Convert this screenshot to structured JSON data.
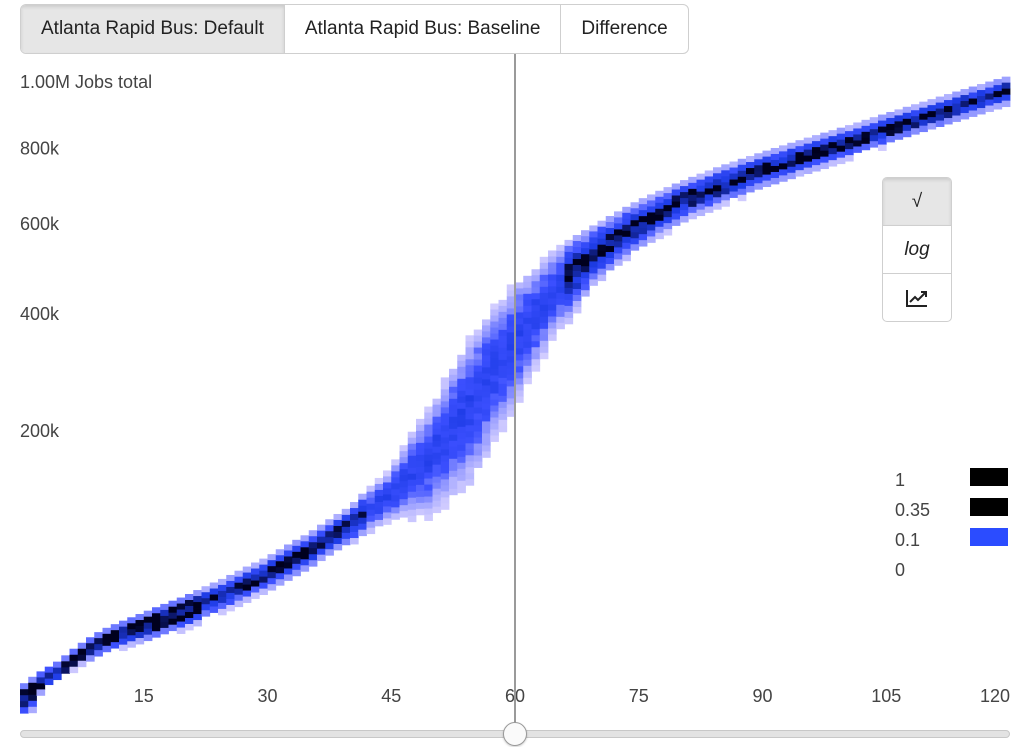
{
  "tabs": [
    {
      "label": "Atlanta Rapid Bus: Default",
      "active": true
    },
    {
      "label": "Atlanta Rapid Bus: Baseline",
      "active": false
    },
    {
      "label": "Difference",
      "active": false
    }
  ],
  "scale_buttons": {
    "sqrt_label": "√",
    "log_label": "log",
    "linear_icon": "line-chart-icon",
    "active": "sqrt"
  },
  "slider": {
    "value": 60,
    "min": 0,
    "max": 120
  },
  "colors": {
    "low": "#e6dcff",
    "mid": "#2b4cff",
    "high": "#000000",
    "cursor": "#9a9a9a"
  },
  "chart_data": {
    "type": "heatmap",
    "title": "",
    "y_unit_label": "1.00M Jobs total",
    "xlabel": "",
    "ylabel": "",
    "y_scale": "sqrt",
    "xlim": [
      0,
      120
    ],
    "ylim": [
      0,
      1000000
    ],
    "x_ticks": [
      "15",
      "30",
      "45",
      "60",
      "75",
      "90",
      "105",
      "120"
    ],
    "x_tick_values": [
      15,
      30,
      45,
      60,
      75,
      90,
      105,
      120
    ],
    "y_ticks": [
      "200k",
      "400k",
      "600k",
      "800k"
    ],
    "y_tick_values": [
      200000,
      400000,
      600000,
      800000
    ],
    "cursor_x": 60,
    "legend": {
      "placement": "bottom-right",
      "entries": [
        {
          "label": "1",
          "color": "#000000"
        },
        {
          "label": "0.35",
          "color": "#000000"
        },
        {
          "label": "0.1",
          "color": "#2b4cff"
        },
        {
          "label": "0",
          "color": "#ffffff"
        }
      ]
    },
    "center_curve": {
      "x": [
        0,
        5,
        10,
        15,
        20,
        25,
        30,
        35,
        40,
        45,
        50,
        55,
        60,
        65,
        70,
        75,
        80,
        85,
        90,
        95,
        100,
        105,
        110,
        115,
        120
      ],
      "y": [
        0,
        5000,
        13000,
        19000,
        26000,
        36000,
        49000,
        66000,
        89000,
        121000,
        170000,
        250000,
        350000,
        450000,
        535000,
        600000,
        655000,
        700000,
        740000,
        778000,
        815000,
        855000,
        895000,
        935000,
        975000
      ]
    },
    "band_spread_jobs": {
      "x": [
        0,
        10,
        20,
        30,
        40,
        45,
        50,
        55,
        60,
        65,
        70,
        80,
        90,
        100,
        110,
        120
      ],
      "y": [
        0,
        2000,
        4000,
        6000,
        9000,
        16000,
        40000,
        65000,
        65000,
        50000,
        35000,
        27000,
        25000,
        24000,
        23000,
        22000
      ]
    }
  }
}
